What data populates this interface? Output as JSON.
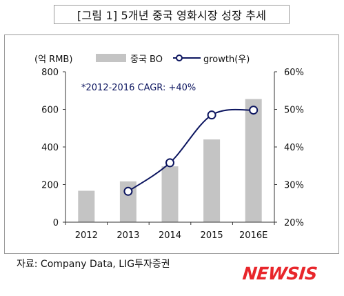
{
  "title": "[그림 1] 5개년 중국 영화시장 성장 추세",
  "source_text": "자료: Company Data, LIG투자증권",
  "logo_text": "NEWSIS",
  "colors": {
    "bar": "#c4c4c4",
    "line": "#0d1660",
    "logo": "#e8262b"
  },
  "chart_data": {
    "type": "bar",
    "categories": [
      "2012",
      "2013",
      "2014",
      "2015",
      "2016E"
    ],
    "series": [
      {
        "name": "중국 BO",
        "type": "bar",
        "axis": "left",
        "values": [
          167,
          217,
          297,
          440,
          655
        ]
      },
      {
        "name": "growth(우)",
        "type": "line",
        "axis": "right",
        "values": [
          null,
          28.2,
          35.8,
          48.5,
          49.8
        ]
      }
    ],
    "ylabel": "(억 RMB)",
    "ylim": [
      0,
      800
    ],
    "yticks": [
      "0",
      "200",
      "400",
      "600",
      "800"
    ],
    "y2lim": [
      20,
      60
    ],
    "y2ticks": [
      "20%",
      "30%",
      "40%",
      "50%",
      "60%"
    ],
    "annotation": "*2012-2016  CAGR: +40%",
    "legend_position": "top",
    "grid": false
  }
}
